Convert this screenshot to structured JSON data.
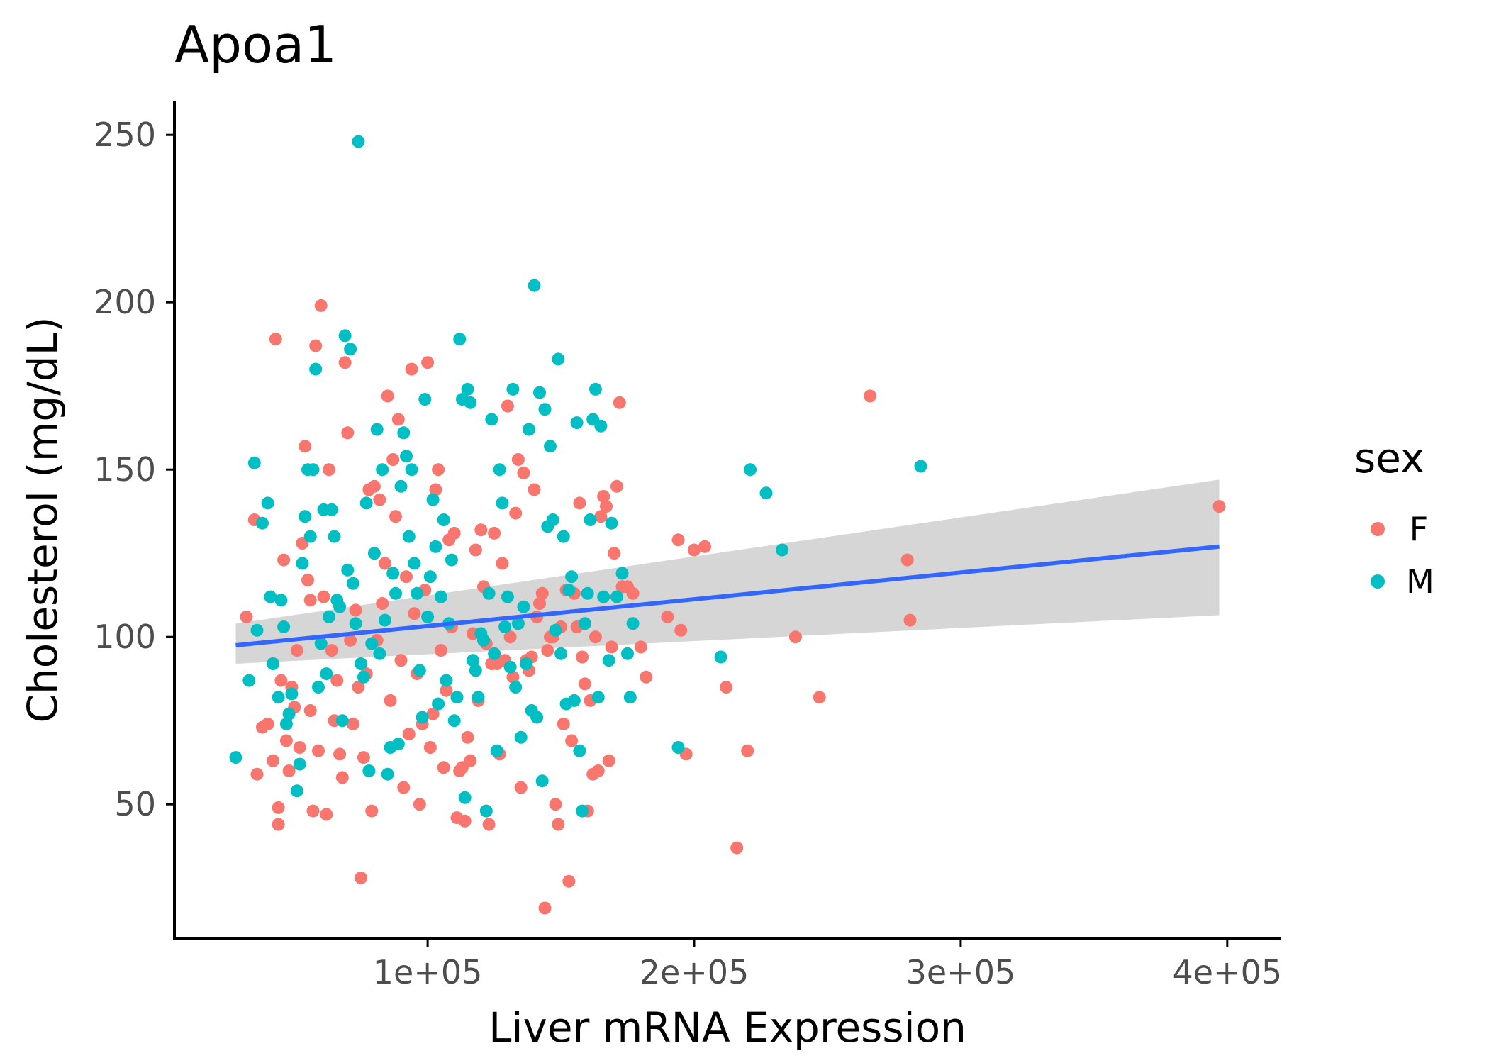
{
  "chart_data": {
    "type": "scatter",
    "title": "Apoa1",
    "xlabel": "Liver mRNA Expression",
    "ylabel": "Cholesterol (mg/dL)",
    "xlim": [
      5000,
      420000
    ],
    "ylim": [
      10,
      260
    ],
    "x_ticks": [
      100000,
      200000,
      300000,
      400000
    ],
    "x_tick_labels": [
      "1e+05",
      "2e+05",
      "3e+05",
      "4e+05"
    ],
    "y_ticks": [
      50,
      100,
      150,
      200,
      250
    ],
    "y_tick_labels": [
      "50",
      "100",
      "150",
      "200",
      "250"
    ],
    "grid": false,
    "legend": {
      "title": "sex",
      "position": "right",
      "entries": [
        {
          "label": "F",
          "color": "#F8766D"
        },
        {
          "label": "M",
          "color": "#00BFC4"
        }
      ]
    },
    "fit": {
      "method": "linear",
      "color": "#3366FF",
      "ribbon_color": "#999999",
      "line": [
        [
          28000,
          97.5
        ],
        [
          397000,
          127
        ]
      ],
      "ci_upper": [
        [
          28000,
          104
        ],
        [
          397000,
          147
        ]
      ],
      "ci_lower": [
        [
          28000,
          92
        ],
        [
          397000,
          106.5
        ]
      ]
    },
    "series": [
      {
        "name": "F",
        "color": "#F8766D",
        "points": [
          [
            32000,
            106
          ],
          [
            35000,
            135
          ],
          [
            36000,
            59
          ],
          [
            38000,
            73
          ],
          [
            40000,
            74
          ],
          [
            42000,
            63
          ],
          [
            43000,
            189
          ],
          [
            44000,
            49
          ],
          [
            44000,
            44
          ],
          [
            45000,
            87
          ],
          [
            46000,
            123
          ],
          [
            47000,
            69
          ],
          [
            48000,
            60
          ],
          [
            49000,
            85
          ],
          [
            50000,
            79
          ],
          [
            51000,
            96
          ],
          [
            52000,
            67
          ],
          [
            53000,
            128
          ],
          [
            54000,
            157
          ],
          [
            55000,
            117
          ],
          [
            56000,
            78
          ],
          [
            56000,
            111
          ],
          [
            57000,
            48
          ],
          [
            58000,
            187
          ],
          [
            59000,
            66
          ],
          [
            60000,
            199
          ],
          [
            61000,
            112
          ],
          [
            62000,
            47
          ],
          [
            63000,
            150
          ],
          [
            64000,
            96
          ],
          [
            65000,
            75
          ],
          [
            66000,
            87
          ],
          [
            67000,
            65
          ],
          [
            68000,
            58
          ],
          [
            69000,
            182
          ],
          [
            70000,
            161
          ],
          [
            71000,
            99
          ],
          [
            72000,
            74
          ],
          [
            73000,
            108
          ],
          [
            74000,
            85
          ],
          [
            75000,
            28
          ],
          [
            76000,
            64
          ],
          [
            77000,
            89
          ],
          [
            78000,
            144
          ],
          [
            79000,
            48
          ],
          [
            80000,
            145
          ],
          [
            81000,
            99
          ],
          [
            82000,
            141
          ],
          [
            83000,
            110
          ],
          [
            84000,
            122
          ],
          [
            85000,
            172
          ],
          [
            86000,
            81
          ],
          [
            87000,
            153
          ],
          [
            88000,
            136
          ],
          [
            89000,
            165
          ],
          [
            90000,
            93
          ],
          [
            91000,
            55
          ],
          [
            92000,
            118
          ],
          [
            93000,
            71
          ],
          [
            94000,
            180
          ],
          [
            95000,
            107
          ],
          [
            96000,
            89
          ],
          [
            97000,
            50
          ],
          [
            98000,
            74
          ],
          [
            99000,
            114
          ],
          [
            100000,
            182
          ],
          [
            101000,
            67
          ],
          [
            102000,
            77
          ],
          [
            103000,
            144
          ],
          [
            104000,
            150
          ],
          [
            105000,
            96
          ],
          [
            106000,
            61
          ],
          [
            107000,
            84
          ],
          [
            108000,
            129
          ],
          [
            109000,
            103
          ],
          [
            110000,
            131
          ],
          [
            111000,
            46
          ],
          [
            112000,
            60
          ],
          [
            113000,
            61
          ],
          [
            114000,
            45
          ],
          [
            115000,
            70
          ],
          [
            116000,
            63
          ],
          [
            117000,
            101
          ],
          [
            118000,
            126
          ],
          [
            119000,
            81
          ],
          [
            120000,
            132
          ],
          [
            121000,
            115
          ],
          [
            122000,
            98
          ],
          [
            123000,
            44
          ],
          [
            124000,
            92
          ],
          [
            125000,
            131
          ],
          [
            126000,
            92
          ],
          [
            127000,
            65
          ],
          [
            128000,
            122
          ],
          [
            129000,
            93
          ],
          [
            130000,
            169
          ],
          [
            131000,
            100
          ],
          [
            132000,
            88
          ],
          [
            133000,
            137
          ],
          [
            134000,
            153
          ],
          [
            135000,
            55
          ],
          [
            136000,
            149
          ],
          [
            137000,
            93
          ],
          [
            138000,
            90
          ],
          [
            139000,
            94
          ],
          [
            140000,
            144
          ],
          [
            141000,
            106
          ],
          [
            142000,
            110
          ],
          [
            143000,
            113
          ],
          [
            144000,
            19
          ],
          [
            145000,
            96
          ],
          [
            146000,
            100
          ],
          [
            147000,
            100
          ],
          [
            148000,
            50
          ],
          [
            149000,
            44
          ],
          [
            150000,
            103
          ],
          [
            151000,
            74
          ],
          [
            152000,
            114
          ],
          [
            153000,
            27
          ],
          [
            154000,
            69
          ],
          [
            155000,
            113
          ],
          [
            156000,
            103
          ],
          [
            157000,
            140
          ],
          [
            158000,
            94
          ],
          [
            159000,
            86
          ],
          [
            160000,
            48
          ],
          [
            161000,
            81
          ],
          [
            162000,
            59
          ],
          [
            163000,
            100
          ],
          [
            164000,
            60
          ],
          [
            165000,
            136
          ],
          [
            166000,
            142
          ],
          [
            167000,
            139
          ],
          [
            168000,
            63
          ],
          [
            169000,
            97
          ],
          [
            170000,
            125
          ],
          [
            171000,
            145
          ],
          [
            172000,
            170
          ],
          [
            173000,
            115
          ],
          [
            175000,
            115
          ],
          [
            177000,
            113
          ],
          [
            180000,
            97
          ],
          [
            182000,
            88
          ],
          [
            190000,
            106
          ],
          [
            194000,
            129
          ],
          [
            195000,
            102
          ],
          [
            197000,
            65
          ],
          [
            200000,
            126
          ],
          [
            204000,
            127
          ],
          [
            212000,
            85
          ],
          [
            216000,
            37
          ],
          [
            220000,
            66
          ],
          [
            238000,
            100
          ],
          [
            247000,
            82
          ],
          [
            266000,
            172
          ],
          [
            280000,
            123
          ],
          [
            281000,
            105
          ],
          [
            397000,
            139
          ]
        ]
      },
      {
        "name": "M",
        "color": "#00BFC4",
        "points": [
          [
            28000,
            64
          ],
          [
            33000,
            87
          ],
          [
            35000,
            152
          ],
          [
            36000,
            102
          ],
          [
            38000,
            134
          ],
          [
            40000,
            140
          ],
          [
            41000,
            112
          ],
          [
            42000,
            92
          ],
          [
            44000,
            82
          ],
          [
            45000,
            111
          ],
          [
            46000,
            103
          ],
          [
            47000,
            74
          ],
          [
            48000,
            77
          ],
          [
            49000,
            83
          ],
          [
            51000,
            54
          ],
          [
            52000,
            62
          ],
          [
            53000,
            122
          ],
          [
            54000,
            136
          ],
          [
            55000,
            150
          ],
          [
            56000,
            130
          ],
          [
            57000,
            150
          ],
          [
            58000,
            180
          ],
          [
            59000,
            85
          ],
          [
            60000,
            98
          ],
          [
            61000,
            138
          ],
          [
            62000,
            89
          ],
          [
            63000,
            106
          ],
          [
            64000,
            138
          ],
          [
            65000,
            130
          ],
          [
            66000,
            111
          ],
          [
            67000,
            109
          ],
          [
            68000,
            75
          ],
          [
            69000,
            190
          ],
          [
            70000,
            120
          ],
          [
            71000,
            186
          ],
          [
            72000,
            116
          ],
          [
            73000,
            104
          ],
          [
            74000,
            248
          ],
          [
            75000,
            92
          ],
          [
            76000,
            88
          ],
          [
            77000,
            140
          ],
          [
            78000,
            60
          ],
          [
            79000,
            98
          ],
          [
            80000,
            125
          ],
          [
            81000,
            162
          ],
          [
            82000,
            95
          ],
          [
            83000,
            150
          ],
          [
            84000,
            105
          ],
          [
            85000,
            59
          ],
          [
            86000,
            67
          ],
          [
            87000,
            119
          ],
          [
            88000,
            113
          ],
          [
            89000,
            68
          ],
          [
            90000,
            145
          ],
          [
            91000,
            161
          ],
          [
            92000,
            154
          ],
          [
            93000,
            130
          ],
          [
            94000,
            150
          ],
          [
            95000,
            122
          ],
          [
            96000,
            113
          ],
          [
            97000,
            90
          ],
          [
            98000,
            76
          ],
          [
            99000,
            171
          ],
          [
            100000,
            106
          ],
          [
            101000,
            118
          ],
          [
            102000,
            141
          ],
          [
            103000,
            127
          ],
          [
            104000,
            80
          ],
          [
            105000,
            112
          ],
          [
            106000,
            135
          ],
          [
            107000,
            87
          ],
          [
            108000,
            104
          ],
          [
            109000,
            123
          ],
          [
            110000,
            75
          ],
          [
            111000,
            82
          ],
          [
            112000,
            189
          ],
          [
            113000,
            171
          ],
          [
            114000,
            52
          ],
          [
            115000,
            174
          ],
          [
            116000,
            170
          ],
          [
            117000,
            93
          ],
          [
            118000,
            90
          ],
          [
            119000,
            82
          ],
          [
            120000,
            101
          ],
          [
            121000,
            99
          ],
          [
            122000,
            48
          ],
          [
            123000,
            113
          ],
          [
            124000,
            165
          ],
          [
            125000,
            95
          ],
          [
            126000,
            66
          ],
          [
            127000,
            150
          ],
          [
            128000,
            140
          ],
          [
            129000,
            103
          ],
          [
            130000,
            112
          ],
          [
            131000,
            91
          ],
          [
            132000,
            174
          ],
          [
            133000,
            85
          ],
          [
            134000,
            104
          ],
          [
            135000,
            70
          ],
          [
            136000,
            109
          ],
          [
            137000,
            92
          ],
          [
            138000,
            162
          ],
          [
            139000,
            78
          ],
          [
            140000,
            205
          ],
          [
            141000,
            76
          ],
          [
            142000,
            173
          ],
          [
            143000,
            57
          ],
          [
            144000,
            168
          ],
          [
            145000,
            133
          ],
          [
            146000,
            157
          ],
          [
            147000,
            135
          ],
          [
            148000,
            102
          ],
          [
            149000,
            183
          ],
          [
            150000,
            95
          ],
          [
            151000,
            130
          ],
          [
            152000,
            80
          ],
          [
            153000,
            114
          ],
          [
            154000,
            118
          ],
          [
            155000,
            81
          ],
          [
            156000,
            164
          ],
          [
            157000,
            66
          ],
          [
            158000,
            48
          ],
          [
            159000,
            104
          ],
          [
            160000,
            113
          ],
          [
            161000,
            135
          ],
          [
            162000,
            165
          ],
          [
            163000,
            174
          ],
          [
            164000,
            82
          ],
          [
            165000,
            163
          ],
          [
            166000,
            112
          ],
          [
            168000,
            93
          ],
          [
            169000,
            134
          ],
          [
            171000,
            112
          ],
          [
            173000,
            119
          ],
          [
            175000,
            95
          ],
          [
            176000,
            82
          ],
          [
            177000,
            104
          ],
          [
            194000,
            67
          ],
          [
            210000,
            94
          ],
          [
            221000,
            150
          ],
          [
            227000,
            143
          ],
          [
            233000,
            126
          ],
          [
            285000,
            151
          ]
        ]
      }
    ]
  }
}
